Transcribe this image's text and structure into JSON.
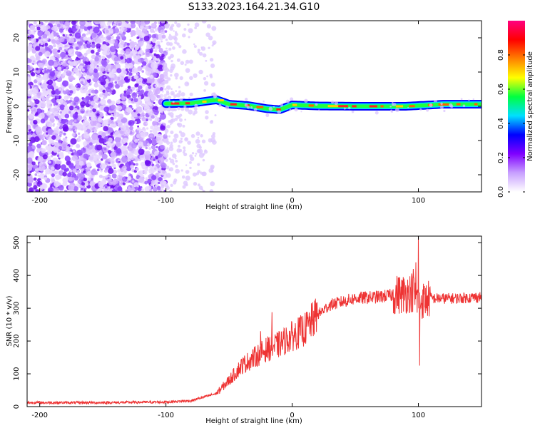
{
  "title": "S133.2023.164.21.34.G10",
  "chart_data": [
    {
      "type": "heatmap",
      "xlabel": "Height of straight line (km)",
      "ylabel": "Frequency (Hz)",
      "xlim": [
        -210,
        150
      ],
      "ylim": [
        -25,
        25
      ],
      "xticks": [
        -200,
        -100,
        0,
        100
      ],
      "yticks": [
        -20,
        -10,
        0,
        10,
        20
      ],
      "colorbar": {
        "label": "Normalized spectral amplitude",
        "range": [
          0,
          1
        ],
        "ticks": [
          0.0,
          0.2,
          0.4,
          0.6,
          0.8
        ],
        "colormap": [
          "#ffffff",
          "#c8a0ff",
          "#8000ff",
          "#0000ff",
          "#00e0ff",
          "#00ff40",
          "#ffff00",
          "#ff8000",
          "#ff0000",
          "#ff0080"
        ]
      },
      "noise_region": {
        "x_start": -210,
        "x_end": -100,
        "amplitude": 0.15,
        "fade_end": -60
      },
      "signal_line": {
        "frequency_hz": 0.0,
        "x_start": -100,
        "x_end": 150,
        "amplitude": 0.9,
        "wiggle": [
          {
            "x": -100,
            "f": 0.8
          },
          {
            "x": -80,
            "f": 0.9
          },
          {
            "x": -60,
            "f": 1.9
          },
          {
            "x": -50,
            "f": 0.6
          },
          {
            "x": -35,
            "f": 0.2
          },
          {
            "x": -20,
            "f": -0.7
          },
          {
            "x": -10,
            "f": -1.0
          },
          {
            "x": 0,
            "f": 0.4
          },
          {
            "x": 20,
            "f": 0.1
          },
          {
            "x": 50,
            "f": 0.0
          },
          {
            "x": 90,
            "f": 0.0
          },
          {
            "x": 120,
            "f": 0.6
          },
          {
            "x": 150,
            "f": 0.6
          }
        ]
      }
    },
    {
      "type": "line",
      "xlabel": "Height of straight line (km)",
      "ylabel": "SNR (10 * v/v)",
      "xlim": [
        -210,
        150
      ],
      "ylim": [
        0,
        520
      ],
      "xticks": [
        -200,
        -100,
        0,
        100
      ],
      "yticks": [
        0,
        100,
        200,
        300,
        400,
        500
      ],
      "color": "#ee3333",
      "series": [
        {
          "x": [
            -210,
            -150,
            -100,
            -80,
            -60,
            -50,
            -40,
            -30,
            -20,
            -10,
            0,
            10,
            20,
            30,
            50,
            70,
            90,
            95,
            100,
            110,
            130,
            150
          ],
          "values": [
            12,
            12,
            14,
            18,
            40,
            80,
            125,
            150,
            175,
            190,
            215,
            235,
            280,
            310,
            330,
            335,
            345,
            350,
            320,
            330,
            330,
            335
          ]
        }
      ],
      "spikes": [
        {
          "x": -16,
          "y": 288
        },
        {
          "x": -25,
          "y": 230
        },
        {
          "x": 96,
          "y": 420
        },
        {
          "x": 98,
          "y": 440
        },
        {
          "x": 100,
          "y": 520
        },
        {
          "x": 101,
          "y": 125
        }
      ]
    }
  ]
}
